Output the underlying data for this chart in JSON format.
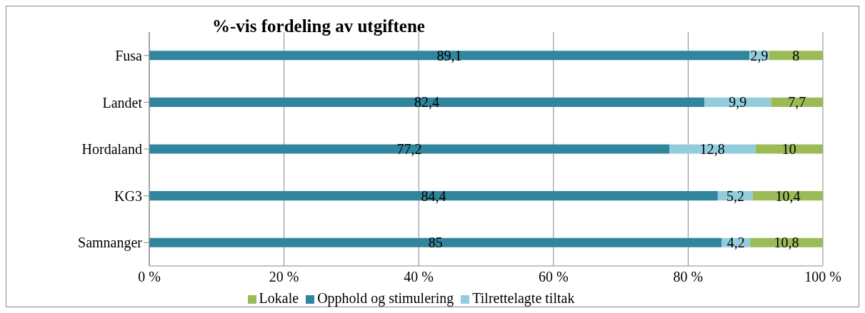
{
  "chart_data": {
    "type": "bar",
    "orientation": "horizontal",
    "stacked": true,
    "title": "%-vis fordeling av utgiftene",
    "categories": [
      "Fusa",
      "Landet",
      "Hordaland",
      "KG3",
      "Samnanger"
    ],
    "series": [
      {
        "name": "Opphold og stimulering",
        "color": "#31859c",
        "values": [
          89.1,
          82.4,
          77.2,
          84.4,
          85
        ],
        "value_labels": [
          "89,1",
          "82,4",
          "77,2",
          "84,4",
          "85"
        ]
      },
      {
        "name": "Tilrettelagte tiltak",
        "color": "#93cddd",
        "values": [
          2.9,
          9.9,
          12.8,
          5.2,
          4.2
        ],
        "value_labels": [
          "2,9",
          "9,9",
          "12,8",
          "5,2",
          "4,2"
        ]
      },
      {
        "name": "Lokale",
        "color": "#9bbb59",
        "values": [
          8,
          7.7,
          10,
          10.4,
          10.8
        ],
        "value_labels": [
          "8",
          "7,7",
          "10",
          "10,4",
          "10,8"
        ]
      }
    ],
    "xlim": [
      0,
      100
    ],
    "xticks": [
      {
        "value": 0,
        "label": "0 %"
      },
      {
        "value": 20,
        "label": "20 %"
      },
      {
        "value": 40,
        "label": "40 %"
      },
      {
        "value": 60,
        "label": "60 %"
      },
      {
        "value": 80,
        "label": "80 %"
      },
      {
        "value": 100,
        "label": "100 %"
      }
    ],
    "grid": "x",
    "legend": "bottom"
  }
}
